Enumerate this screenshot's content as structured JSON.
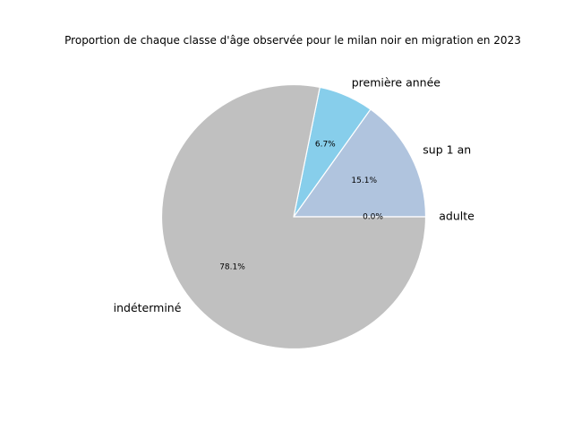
{
  "chart_data": {
    "type": "pie",
    "title": "Proportion de chaque classe d'âge observée pour le milan noir en migration en 2023",
    "categories": [
      "adulte",
      "sup 1 an",
      "première année",
      "indéterminé"
    ],
    "values": [
      0.0,
      15.1,
      6.7,
      78.1
    ],
    "percent_labels": [
      "0.0%",
      "15.1%",
      "6.7%",
      "78.1%"
    ],
    "colors": [
      "#4682b4",
      "#b0c4de",
      "#87ceeb",
      "#c0c0c0"
    ],
    "start_angle_deg": 0,
    "direction": "counterclockwise",
    "legend": "none"
  }
}
